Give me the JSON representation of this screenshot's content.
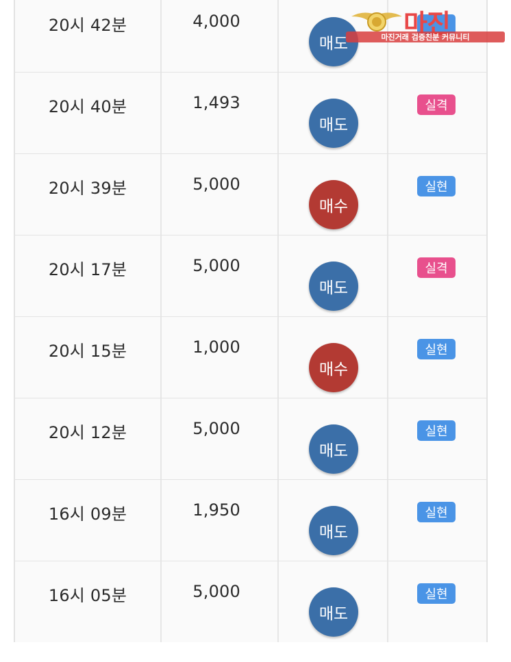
{
  "rows": [
    {
      "time": "20시 42분",
      "amount": "4,000",
      "side": "매도",
      "side_type": "sell",
      "result": "",
      "result_type": "realized"
    },
    {
      "time": "20시 40분",
      "amount": "1,493",
      "side": "매도",
      "side_type": "sell",
      "result": "실격",
      "result_type": "failed"
    },
    {
      "time": "20시 39분",
      "amount": "5,000",
      "side": "매수",
      "side_type": "buy",
      "result": "실현",
      "result_type": "realized"
    },
    {
      "time": "20시 17분",
      "amount": "5,000",
      "side": "매도",
      "side_type": "sell",
      "result": "실격",
      "result_type": "failed"
    },
    {
      "time": "20시 15분",
      "amount": "1,000",
      "side": "매수",
      "side_type": "buy",
      "result": "실현",
      "result_type": "realized"
    },
    {
      "time": "20시 12분",
      "amount": "5,000",
      "side": "매도",
      "side_type": "sell",
      "result": "실현",
      "result_type": "realized"
    },
    {
      "time": "16시 09분",
      "amount": "1,950",
      "side": "매도",
      "side_type": "sell",
      "result": "실현",
      "result_type": "realized"
    },
    {
      "time": "16시 05분",
      "amount": "5,000",
      "side": "매도",
      "side_type": "sell",
      "result": "실현",
      "result_type": "realized"
    }
  ],
  "colors": {
    "sell": "#3b6fa8",
    "buy": "#b33a33",
    "realized": "#4a94e6",
    "failed": "#e8508d"
  },
  "watermark": {
    "title": "마진",
    "subtitle": "마진거래 검증친분 커뮤니티",
    "icon": "eagle-emblem-icon"
  }
}
